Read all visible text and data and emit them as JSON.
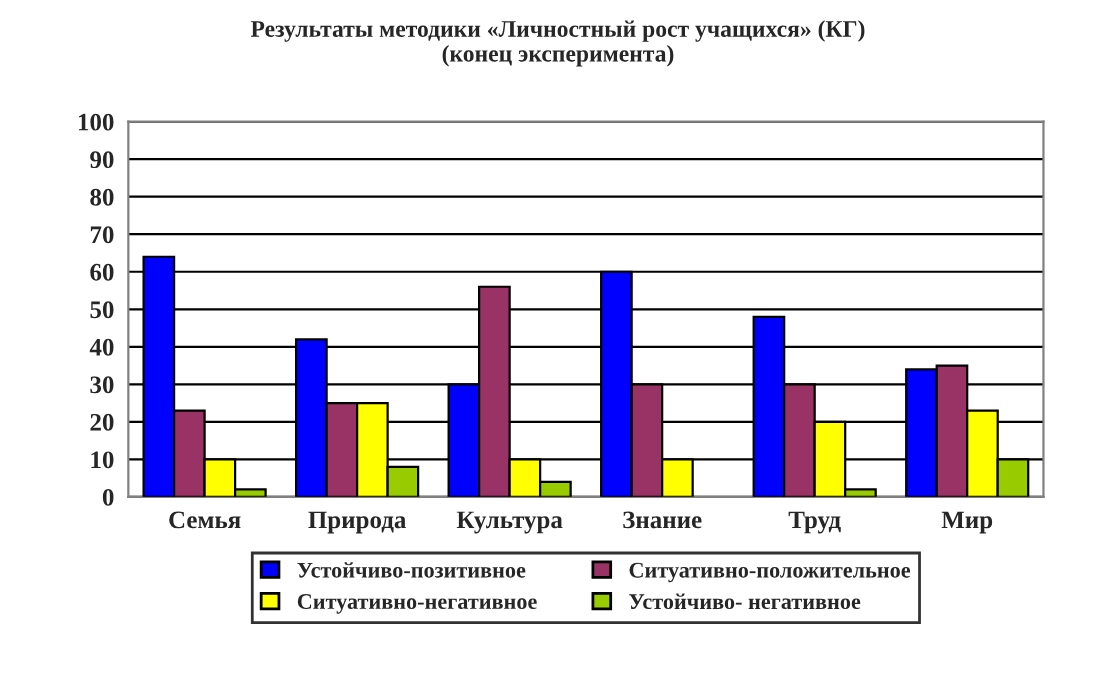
{
  "chart_data": {
    "type": "bar",
    "title": "Результаты методики «Личностный рост учащихся» (КГ)\n(конец эксперимента)",
    "categories": [
      "Семья",
      "Природа",
      "Культура",
      "Знание",
      "Труд",
      "Мир"
    ],
    "series": [
      {
        "name": "Устойчиво-позитивное",
        "color": "#0000ff",
        "values": [
          64,
          42,
          30,
          60,
          48,
          34
        ]
      },
      {
        "name": "Ситуативно-положительное",
        "color": "#993366",
        "values": [
          23,
          25,
          56,
          30,
          30,
          35
        ]
      },
      {
        "name": "Ситуативно-негативное",
        "color": "#ffff00",
        "values": [
          10,
          25,
          10,
          10,
          20,
          23
        ]
      },
      {
        "name": "Устойчиво- негативное",
        "color": "#99cc00",
        "values": [
          2,
          8,
          4,
          null,
          2,
          10
        ]
      }
    ],
    "ylim": [
      0,
      100
    ],
    "yticks": [
      0,
      10,
      20,
      30,
      40,
      50,
      60,
      70,
      80,
      90,
      100
    ],
    "grid": "y",
    "legend": "bottom"
  }
}
